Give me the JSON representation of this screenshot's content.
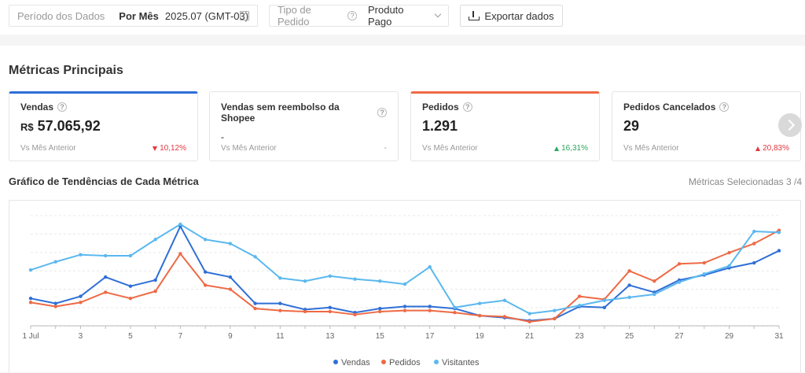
{
  "filters": {
    "period_label": "Período dos Dados",
    "period_mode": "Por Mês",
    "period_value": "2025.07 (GMT-03)",
    "type_label": "Tipo de Pedido",
    "type_value": "Produto Pago",
    "export_label": "Exportar dados"
  },
  "metrics": {
    "title": "Métricas Principais",
    "cards": [
      {
        "title": "Vendas",
        "currency": "R$",
        "value": " 57.065,92",
        "compare": "Vs Mês Anterior",
        "change": "10,12%",
        "direction": "down"
      },
      {
        "title": "Vendas sem reembolso da Shopee",
        "value": "-",
        "compare": "Vs Mês Anterior",
        "change": "-",
        "direction": "none"
      },
      {
        "title": "Pedidos",
        "value": "1.291",
        "compare": "Vs Mês Anterior",
        "change": "16,31%",
        "direction": "up"
      },
      {
        "title": "Pedidos Cancelados",
        "value": "29",
        "compare": "Vs Mês Anterior",
        "change": "20,83%",
        "direction": "up-red"
      }
    ]
  },
  "trend": {
    "title": "Gráfico de Tendências de Cada Métrica",
    "selected": "Métricas Selecionadas 3 /4"
  },
  "chart_data": {
    "type": "line",
    "x": [
      1,
      2,
      3,
      4,
      5,
      6,
      7,
      8,
      9,
      10,
      11,
      12,
      13,
      14,
      15,
      16,
      17,
      18,
      19,
      20,
      21,
      22,
      23,
      24,
      25,
      26,
      27,
      28,
      29,
      30,
      31
    ],
    "x_tick_labels": [
      "1 Jul",
      "3",
      "5",
      "7",
      "9",
      "11",
      "13",
      "15",
      "17",
      "19",
      "21",
      "23",
      "25",
      "27",
      "29",
      "31"
    ],
    "x_tick_values": [
      1,
      3,
      5,
      7,
      9,
      11,
      13,
      15,
      17,
      19,
      21,
      23,
      25,
      27,
      29,
      31
    ],
    "ylim": [
      0,
      100
    ],
    "grid": true,
    "legend": "bottom",
    "series": [
      {
        "name": "Vendas",
        "color": "#2f6fd6",
        "values": [
          27,
          22,
          29,
          48,
          39,
          45,
          98,
          53,
          48,
          22,
          22,
          16,
          18,
          13,
          17,
          19,
          19,
          17,
          10,
          8,
          5,
          7,
          19,
          18,
          40,
          33,
          45,
          50,
          57,
          62,
          74
        ]
      },
      {
        "name": "Pedidos",
        "color": "#ee6a45",
        "values": [
          23,
          19,
          23,
          33,
          27,
          34,
          71,
          40,
          36,
          17,
          15,
          14,
          14,
          11,
          14,
          15,
          15,
          13,
          10,
          9,
          4,
          7,
          29,
          26,
          54,
          44,
          61,
          62,
          72,
          81,
          94
        ]
      },
      {
        "name": "Visitantes",
        "color": "#5bb8ef",
        "values": [
          55,
          63,
          70,
          69,
          69,
          85,
          100,
          85,
          81,
          68,
          47,
          44,
          49,
          46,
          44,
          41,
          58,
          18,
          22,
          25,
          12,
          15,
          20,
          25,
          28,
          31,
          43,
          51,
          59,
          93,
          92
        ]
      }
    ]
  }
}
